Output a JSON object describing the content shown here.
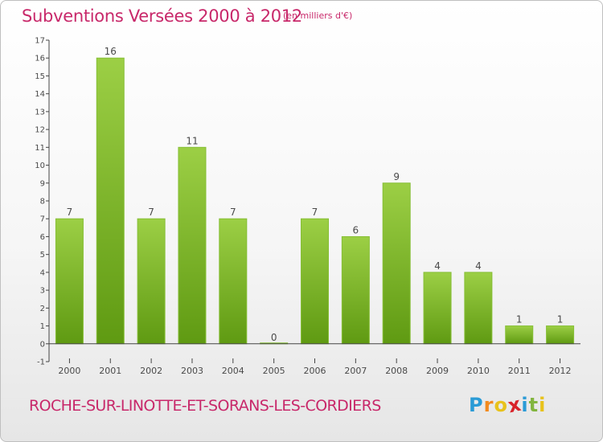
{
  "header": {
    "title": "Subventions Versées 2000 à 2012",
    "subtitle": "(en milliers d'€)"
  },
  "footer": {
    "commune": "ROCHE-SUR-LINOTTE-ET-SORANS-LES-CORDIERS",
    "logo_letters": [
      "P",
      "r",
      "o",
      "x",
      "i",
      "t",
      "i"
    ],
    "logo_colors": [
      "#2a9bd6",
      "#f28a1d",
      "#e8c21b",
      "#d8232a",
      "#2a9bd6",
      "#82b53f",
      "#e8c21b"
    ]
  },
  "chart_data": {
    "type": "bar",
    "categories": [
      "2000",
      "2001",
      "2002",
      "2003",
      "2004",
      "2005",
      "2006",
      "2007",
      "2008",
      "2009",
      "2010",
      "2011",
      "2012"
    ],
    "values": [
      7,
      16,
      7,
      11,
      7,
      0,
      7,
      6,
      9,
      4,
      4,
      1,
      1
    ],
    "title": "Subventions Versées 2000 à 2012",
    "subtitle": "(en milliers d'€)",
    "xlabel": "",
    "ylabel": "",
    "ylim": [
      -1,
      17
    ],
    "yticks": [
      -1,
      0,
      1,
      2,
      3,
      4,
      5,
      6,
      7,
      8,
      9,
      10,
      11,
      12,
      13,
      14,
      15,
      16,
      17
    ],
    "grid": false,
    "data_labels": true,
    "colors": {
      "bar_top": "#9ccf45",
      "bar_bottom": "#5f9a12",
      "bar_edge": "#86bf36",
      "axis": "#444444"
    }
  }
}
